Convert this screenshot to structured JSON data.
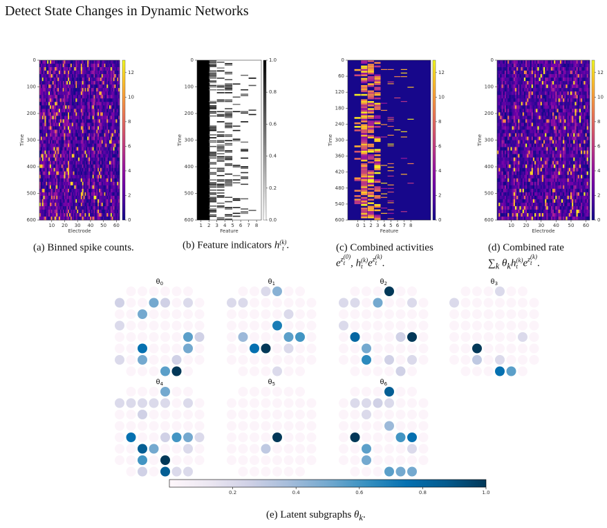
{
  "title": "Detect State Changes in Dynamic Networks",
  "panels": [
    {
      "caption": "(a) Binned spike counts.",
      "math": [],
      "ylabel": "Time",
      "xlabel": "Electrode",
      "colormap": "plasma",
      "xlim": [
        0.5,
        62.5
      ],
      "xticks": [
        10,
        20,
        30,
        40,
        50,
        60
      ],
      "ylim": [
        0,
        600
      ],
      "yticks": [
        0,
        100,
        200,
        300,
        400,
        500,
        600
      ],
      "colorbar": {
        "lim": [
          0,
          13
        ],
        "ticks": [
          0,
          2,
          4,
          6,
          8,
          10,
          12
        ]
      }
    },
    {
      "caption": "(b) Feature indicators",
      "math": [
        "h",
        "t",
        "(k)",
        "."
      ],
      "ylabel": "Time",
      "xlabel": "Feature",
      "colormap": "gray_r",
      "xlim": [
        0.5,
        8.6
      ],
      "xticks": [
        1,
        2,
        3,
        4,
        5,
        6,
        7,
        8
      ],
      "ylim": [
        0,
        600
      ],
      "yticks": [
        0,
        100,
        200,
        300,
        400,
        500,
        600
      ],
      "colorbar": {
        "lim": [
          0,
          1
        ],
        "ticks": [
          {
            "value": 0,
            "label": "0.0"
          },
          {
            "value": 0.2,
            "label": "0.2"
          },
          {
            "value": 0.4,
            "label": "0.4"
          },
          {
            "value": 0.6,
            "label": "0.6"
          },
          {
            "value": 0.8,
            "label": "0.8"
          },
          {
            "value": 1,
            "label": "1.0"
          }
        ]
      }
    },
    {
      "caption": "(c) Combined activities",
      "math": [
        "e",
        "z",
        "t",
        "(0)",
        ", ",
        "h",
        "t",
        "(k)",
        "e",
        "z",
        "t",
        "(k)",
        "."
      ],
      "ylabel": "Time",
      "xlabel": "Feature",
      "colormap": "plasma",
      "xlim": [
        -1.5,
        11
      ],
      "xticks": [
        0,
        1,
        2,
        3,
        4,
        5,
        6,
        7,
        8
      ],
      "ylim": [
        0,
        600
      ],
      "yticks": [
        0,
        60,
        120,
        180,
        240,
        300,
        360,
        420,
        480,
        540,
        600
      ],
      "colorbar": {
        "lim": [
          0,
          13
        ],
        "ticks": [
          0,
          2,
          4,
          6,
          8,
          10,
          12
        ]
      }
    },
    {
      "caption": "(d) Combined rate",
      "math": [
        "∑",
        "k",
        "θ",
        "k",
        "h",
        "t",
        "(k)",
        "e",
        "z",
        "t",
        "(k)",
        "."
      ],
      "ylabel": "Time",
      "xlabel": "Electrode",
      "colormap": "plasma",
      "xlim": [
        0.5,
        62.5
      ],
      "xticks": [
        10,
        20,
        30,
        40,
        50,
        60
      ],
      "ylim": [
        0,
        600
      ],
      "yticks": [
        0,
        100,
        200,
        300,
        400,
        500,
        600
      ],
      "colorbar": {
        "lim": [
          0,
          13
        ],
        "ticks": [
          0,
          2,
          4,
          6,
          8,
          10,
          12
        ]
      }
    }
  ],
  "subgraphs": {
    "caption": "(e) Latent subgraphs",
    "math": [
      "θ",
      "k",
      "."
    ],
    "colorbar": {
      "lim": [
        0,
        1
      ],
      "ticks": [
        0.2,
        0.4,
        0.6,
        0.8,
        {
          "value": 1,
          "label": "1.0"
        }
      ]
    },
    "panels": [
      {
        "label": "θ",
        "index": "0",
        "values": [
          [
            null,
            0.02,
            0.02,
            0.02,
            0.02,
            0.02,
            0.02,
            null
          ],
          [
            0.25,
            0.02,
            0.02,
            0.5,
            0.25,
            0.02,
            0.2,
            0.02
          ],
          [
            0.02,
            0.02,
            0.5,
            0.02,
            0.02,
            0.02,
            0.02,
            0.02
          ],
          [
            0.2,
            0.02,
            0.02,
            0.02,
            0.02,
            0.02,
            0.02,
            0.02
          ],
          [
            0.02,
            0.02,
            0.02,
            0.02,
            0.02,
            0.02,
            0.55,
            0.25
          ],
          [
            0.02,
            0.02,
            0.75,
            0.02,
            0.02,
            0.02,
            0.5,
            0.02
          ],
          [
            0.2,
            0.02,
            0.5,
            0.02,
            0.02,
            0.25,
            0.02,
            0.02
          ],
          [
            null,
            0.02,
            0.02,
            0.02,
            0.55,
            1.0,
            0.02,
            null
          ]
        ]
      },
      {
        "label": "θ",
        "index": "1",
        "values": [
          [
            null,
            0.02,
            0.02,
            0.2,
            0.45,
            0.02,
            0.02,
            null
          ],
          [
            0.2,
            0.2,
            0.02,
            0.02,
            0.02,
            0.02,
            0.02,
            0.02
          ],
          [
            0.02,
            0.02,
            0.02,
            0.02,
            0.02,
            0.2,
            0.02,
            0.02
          ],
          [
            0.02,
            0.02,
            0.02,
            0.02,
            0.7,
            0.02,
            0.02,
            0.02
          ],
          [
            0.02,
            0.4,
            0.02,
            0.02,
            0.02,
            0.55,
            0.6,
            0.02
          ],
          [
            0.02,
            0.02,
            0.75,
            1.0,
            0.02,
            0.2,
            0.02,
            0.02
          ],
          [
            0.02,
            0.02,
            0.02,
            0.02,
            0.02,
            0.02,
            0.02,
            0.02
          ],
          [
            null,
            0.02,
            0.02,
            0.02,
            0.2,
            0.02,
            0.02,
            null
          ]
        ]
      },
      {
        "label": "θ",
        "index": "2",
        "values": [
          [
            null,
            0.02,
            0.02,
            0.02,
            1.0,
            0.02,
            0.02,
            null
          ],
          [
            0.2,
            0.2,
            0.02,
            0.5,
            0.02,
            0.02,
            0.2,
            0.02
          ],
          [
            0.02,
            0.02,
            0.02,
            0.02,
            0.02,
            0.02,
            0.02,
            0.02
          ],
          [
            0.2,
            0.02,
            0.02,
            0.02,
            0.02,
            0.02,
            0.02,
            0.02
          ],
          [
            0.02,
            0.8,
            0.02,
            0.02,
            0.02,
            0.25,
            1.0,
            0.02
          ],
          [
            0.02,
            0.02,
            0.5,
            0.02,
            0.02,
            0.02,
            0.02,
            0.02
          ],
          [
            0.02,
            0.02,
            0.65,
            0.02,
            0.25,
            0.02,
            0.2,
            0.02
          ],
          [
            null,
            0.02,
            0.02,
            0.02,
            0.02,
            0.25,
            0.02,
            null
          ]
        ]
      },
      {
        "label": "θ",
        "index": "3",
        "values": [
          [
            null,
            0.02,
            0.02,
            0.02,
            0.2,
            0.02,
            0.02,
            null
          ],
          [
            0.2,
            0.02,
            0.02,
            0.02,
            0.02,
            0.02,
            0.02,
            0.02
          ],
          [
            0.02,
            0.02,
            0.02,
            0.02,
            0.02,
            0.02,
            0.02,
            0.02
          ],
          [
            0.02,
            0.02,
            0.02,
            0.02,
            0.02,
            0.02,
            0.02,
            0.02
          ],
          [
            0.02,
            0.02,
            0.02,
            0.02,
            0.02,
            0.02,
            0.2,
            0.02
          ],
          [
            0.02,
            0.02,
            1.0,
            0.02,
            0.02,
            0.02,
            0.02,
            0.02
          ],
          [
            0.02,
            0.02,
            0.3,
            0.02,
            0.2,
            0.02,
            0.02,
            0.02
          ],
          [
            null,
            0.02,
            0.02,
            0.02,
            0.75,
            0.55,
            0.02,
            null
          ]
        ]
      },
      {
        "label": "θ",
        "index": "4",
        "values": [
          [
            null,
            0.02,
            0.02,
            0.02,
            0.5,
            0.02,
            0.02,
            null
          ],
          [
            0.2,
            0.2,
            0.2,
            0.2,
            0.2,
            0.02,
            0.2,
            0.02
          ],
          [
            0.02,
            0.02,
            0.25,
            0.02,
            0.02,
            0.02,
            0.02,
            0.02
          ],
          [
            0.02,
            0.02,
            0.02,
            0.02,
            0.02,
            0.02,
            0.02,
            0.02
          ],
          [
            0.02,
            0.75,
            0.02,
            0.02,
            0.25,
            0.6,
            0.5,
            0.2
          ],
          [
            0.02,
            0.02,
            0.85,
            0.5,
            0.02,
            0.02,
            0.2,
            0.02
          ],
          [
            0.02,
            0.02,
            0.6,
            0.02,
            1.0,
            0.02,
            0.02,
            0.02
          ],
          [
            null,
            0.02,
            0.25,
            0.02,
            0.85,
            0.2,
            0.2,
            null
          ]
        ]
      },
      {
        "label": "θ",
        "index": "5",
        "values": [
          [
            null,
            0.02,
            0.02,
            0.02,
            0.02,
            0.02,
            0.02,
            null
          ],
          [
            0.02,
            0.02,
            0.02,
            0.02,
            0.02,
            0.02,
            0.02,
            0.02
          ],
          [
            0.02,
            0.02,
            0.02,
            0.02,
            0.02,
            0.02,
            0.02,
            0.02
          ],
          [
            0.02,
            0.02,
            0.02,
            0.02,
            0.02,
            0.02,
            0.02,
            0.02
          ],
          [
            0.02,
            0.02,
            0.02,
            0.02,
            1.0,
            0.02,
            0.02,
            0.02
          ],
          [
            0.02,
            0.02,
            0.02,
            0.3,
            0.02,
            0.02,
            0.02,
            0.02
          ],
          [
            0.02,
            0.02,
            0.02,
            0.02,
            0.02,
            0.02,
            0.02,
            0.02
          ],
          [
            null,
            0.02,
            0.02,
            0.02,
            0.02,
            0.02,
            0.02,
            null
          ]
        ]
      },
      {
        "label": "θ",
        "index": "6",
        "values": [
          [
            null,
            0.02,
            0.02,
            0.02,
            0.85,
            0.02,
            0.02,
            null
          ],
          [
            0.02,
            0.2,
            0.2,
            0.25,
            0.2,
            0.02,
            0.02,
            0.02
          ],
          [
            0.02,
            0.02,
            0.2,
            0.02,
            0.02,
            0.02,
            0.02,
            0.02
          ],
          [
            0.02,
            0.02,
            0.02,
            0.02,
            0.4,
            0.02,
            0.02,
            0.02
          ],
          [
            0.02,
            1.0,
            0.02,
            0.02,
            0.02,
            0.6,
            0.75,
            0.02
          ],
          [
            0.02,
            0.02,
            0.55,
            0.02,
            0.02,
            0.02,
            0.2,
            0.02
          ],
          [
            0.02,
            0.02,
            0.5,
            0.02,
            0.02,
            0.02,
            0.02,
            0.02
          ],
          [
            null,
            0.02,
            0.02,
            0.02,
            0.55,
            0.5,
            0.5,
            null
          ]
        ]
      }
    ]
  }
}
